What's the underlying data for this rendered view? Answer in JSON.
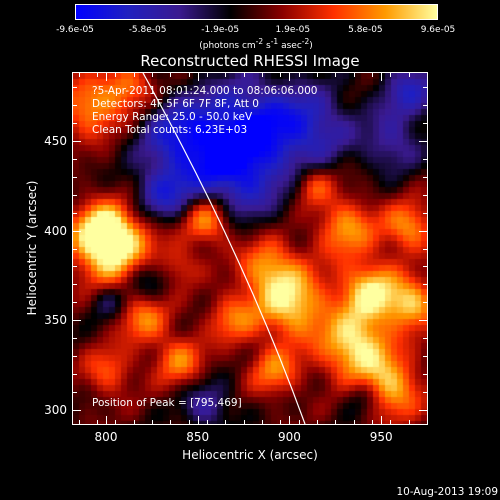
{
  "colorbar": {
    "ticks": [
      "-9.6e-05",
      "-5.8e-05",
      "-1.9e-05",
      "1.9e-05",
      "5.8e-05",
      "9.6e-05"
    ],
    "unit_html": "(photons cm<sup>-2</sup> s<sup>-1</sup> asec<sup>-2</sup>)",
    "colors": [
      "#0000ff",
      "#2020c0",
      "#3a1a90",
      "#000000",
      "#8a0000",
      "#ff3000",
      "#ff9a00",
      "#ffffa0"
    ]
  },
  "chart_data": {
    "type": "heatmap",
    "title": "Reconstructed RHESSI Image",
    "xlabel": "Heliocentric X (arcsec)",
    "ylabel": "Heliocentric Y (arcsec)",
    "xlim": [
      782,
      975
    ],
    "ylim": [
      292,
      488
    ],
    "xticks": [
      "800",
      "850",
      "900",
      "950"
    ],
    "yticks": [
      "300",
      "350",
      "400",
      "450"
    ],
    "colorbar_range": [
      -9.6e-05,
      9.6e-05
    ],
    "peak_position": [
      795,
      469
    ]
  },
  "info": {
    "line1": "?5-Apr-2011 08:01:24.000 to 08:06:06.000",
    "line2": "Detectors: 4F 5F 6F 7F 8F, Att 0",
    "line3": "Energy Range: 25.0 - 50.0 keV",
    "line4": "Clean     Total counts: 6.23E+03"
  },
  "peak_label": "Position of Peak = [795,469]",
  "timestamp": "10-Aug-2013 19:09"
}
